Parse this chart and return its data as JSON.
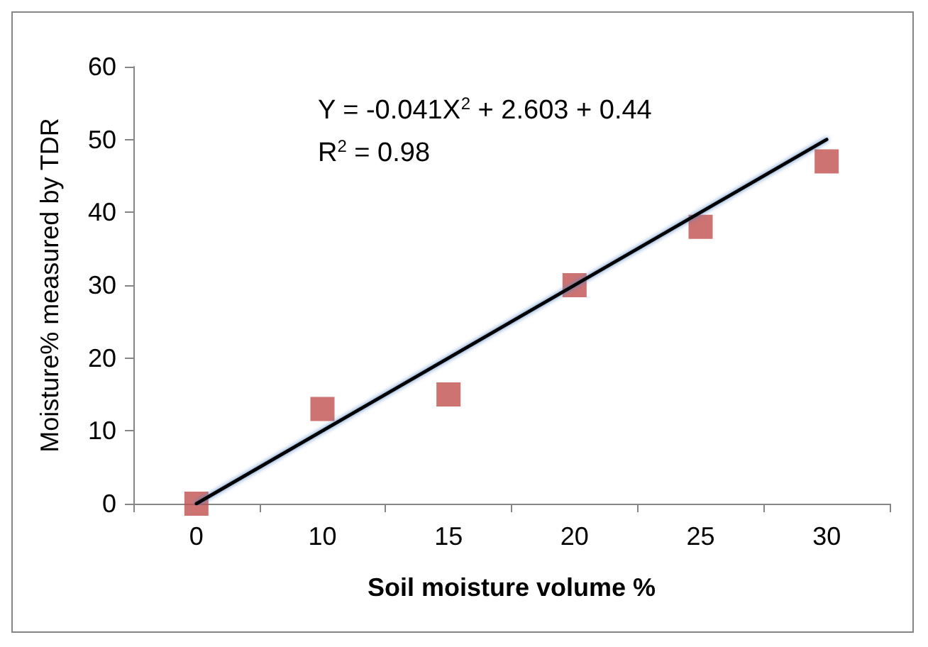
{
  "chart_data": {
    "type": "scatter",
    "xlabel": "Soil moisture volume %",
    "ylabel": "Moisture% measured by TDR",
    "categories": [
      "0",
      "10",
      "15",
      "20",
      "25",
      "30"
    ],
    "series": [
      {
        "color": "#c0504d",
        "values": [
          0,
          13,
          15,
          30,
          38,
          47
        ],
        "marker": "square"
      },
      {
        "type": "line",
        "color": "#000000",
        "x": [
          "0",
          "30"
        ],
        "values": [
          0,
          50
        ],
        "marker": "none",
        "line_style": "solid"
      }
    ],
    "annotations": [
      "Y = -0.041X$^{2}$ + 2.603 + 0.44",
      "R$^{2}$ = 0.98"
    ],
    "ylim": [
      0,
      60
    ],
    "yticks": [
      0,
      10,
      20,
      30,
      40,
      50,
      60
    ],
    "grid": false
  }
}
